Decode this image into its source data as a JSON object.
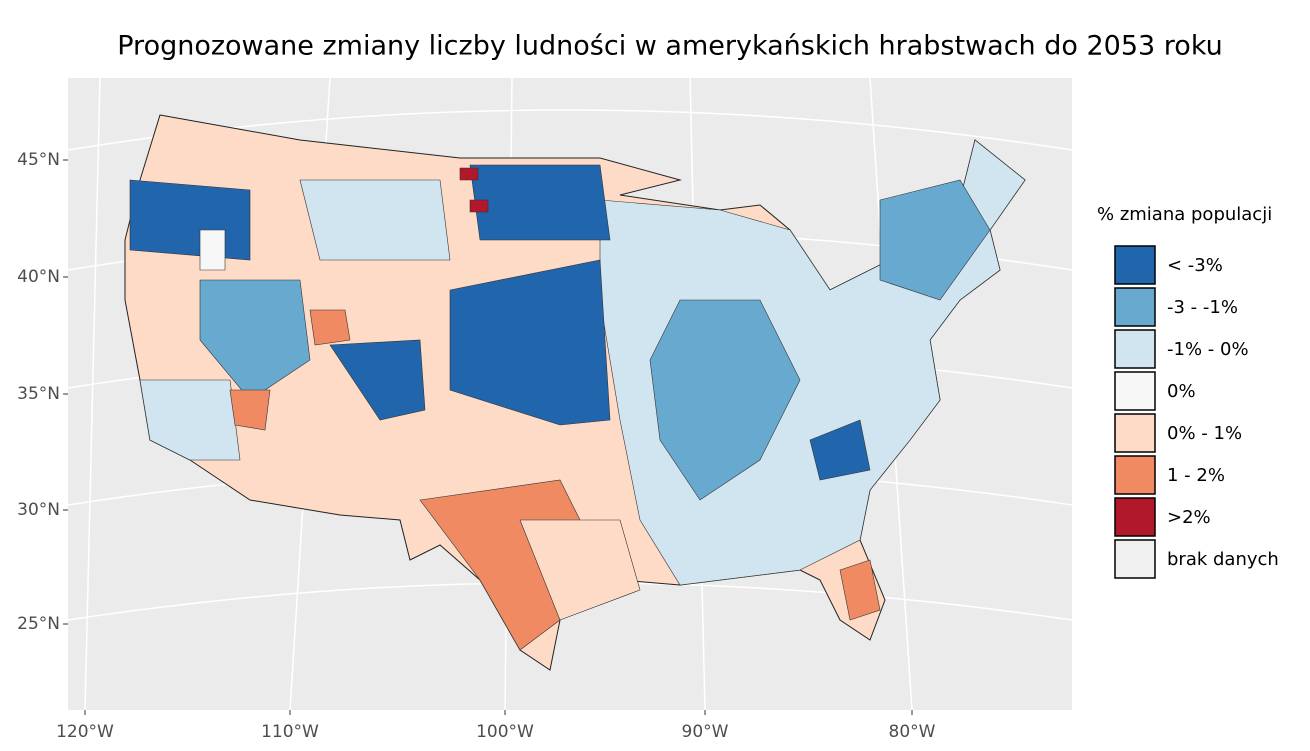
{
  "title": "Prognozowane zmiany liczby ludności w amerykańskich hrabstwach do 2053 roku",
  "legend": {
    "title": "% zmiana populacji",
    "items": [
      {
        "label": "< -3%",
        "color": "#2166ac"
      },
      {
        "label": "-3 - -1%",
        "color": "#67a9cf"
      },
      {
        "label": "-1% - 0%",
        "color": "#d1e5f0"
      },
      {
        "label": "0%",
        "color": "#f7f7f7"
      },
      {
        "label": "0% - 1%",
        "color": "#fddbc7"
      },
      {
        "label": "1 - 2%",
        "color": "#ef8a62"
      },
      {
        "label": ">2%",
        "color": "#b2182b"
      },
      {
        "label": "brak danych",
        "color": "#f0f0f0"
      }
    ]
  },
  "axes": {
    "lat_labels": [
      "45°N",
      "40°N",
      "35°N",
      "30°N",
      "25°N"
    ],
    "lon_labels": [
      "120°W",
      "110°W",
      "100°W",
      "90°W",
      "80°W"
    ]
  }
}
